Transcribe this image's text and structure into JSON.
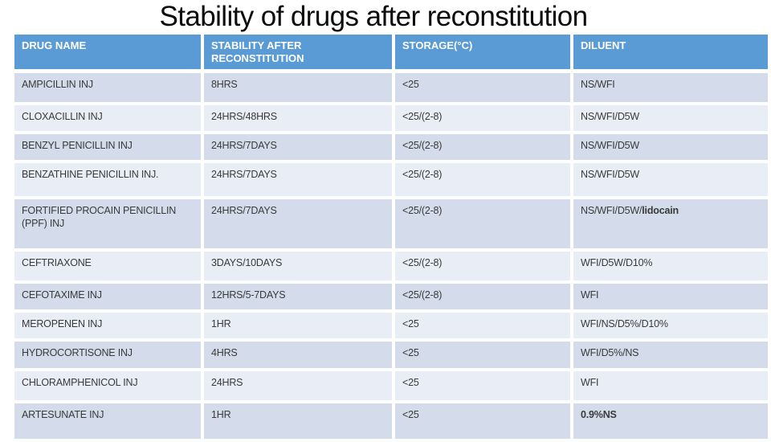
{
  "title": "Stability of drugs after reconstitution",
  "table": {
    "columns": [
      "DRUG NAME",
      "STABILITY AFTER RECONSTITUTION",
      "STORAGE(°C)",
      "DILUENT"
    ],
    "rows": [
      {
        "drug": "AMPICILLIN INJ",
        "stability": "8HRS",
        "storage": "<25",
        "diluent": "NS/WFI"
      },
      {
        "drug": "CLOXACILLIN INJ",
        "stability": "24HRS/48HRS",
        "storage": "<25/(2-8)",
        "diluent": "NS/WFI/D5W"
      },
      {
        "drug": "BENZYL PENICILLIN INJ",
        "stability": "24HRS/7DAYS",
        "storage": "<25/(2-8)",
        "diluent": "NS/WFI/D5W"
      },
      {
        "drug": "BENZATHINE PENICILLIN INJ.",
        "stability": "24HRS/7DAYS",
        "storage": "<25/(2-8)",
        "diluent": "NS/WFI/D5W"
      },
      {
        "drug": "FORTIFIED PROCAIN PENICILLIN (PPF) INJ",
        "stability": "24HRS/7DAYS",
        "storage": "<25/(2-8)",
        "diluent": [
          {
            "text": "NS/WFI/D5W/",
            "bold": false
          },
          {
            "text": "lidocain",
            "bold": true
          }
        ]
      },
      {
        "drug": "CEFTRIAXONE",
        "stability": "3DAYS/10DAYS",
        "storage": "<25/(2-8)",
        "diluent": "WFI/D5W/D10%"
      },
      {
        "drug": "CEFOTAXIME INJ",
        "stability": "12HRS/5-7DAYS",
        "storage": "<25/(2-8)",
        "diluent": "WFI"
      },
      {
        "drug": "MEROPENEN INJ",
        "stability": "1HR",
        "storage": "<25",
        "diluent": "WFI/NS/D5%/D10%"
      },
      {
        "drug": "HYDROCORTISONE INJ",
        "stability": "4HRS",
        "storage": "<25",
        "diluent": "WFI/D5%/NS"
      },
      {
        "drug": "CHLORAMPHENICOL INJ",
        "stability": "24HRS",
        "storage": "<25",
        "diluent": "WFI"
      },
      {
        "drug": "ARTESUNATE INJ",
        "stability": "1HR",
        "storage": "<25",
        "diluent": [
          {
            "text": "0.9%NS",
            "bold": true
          }
        ]
      }
    ]
  },
  "colors": {
    "header_bg": "#5B9BD5",
    "header_text": "#FFFFFF",
    "band_dark": "#D4DCEB",
    "band_light": "#E9EDF5",
    "body_text": "#3A3A3A",
    "title_text": "#0C0C0C"
  }
}
